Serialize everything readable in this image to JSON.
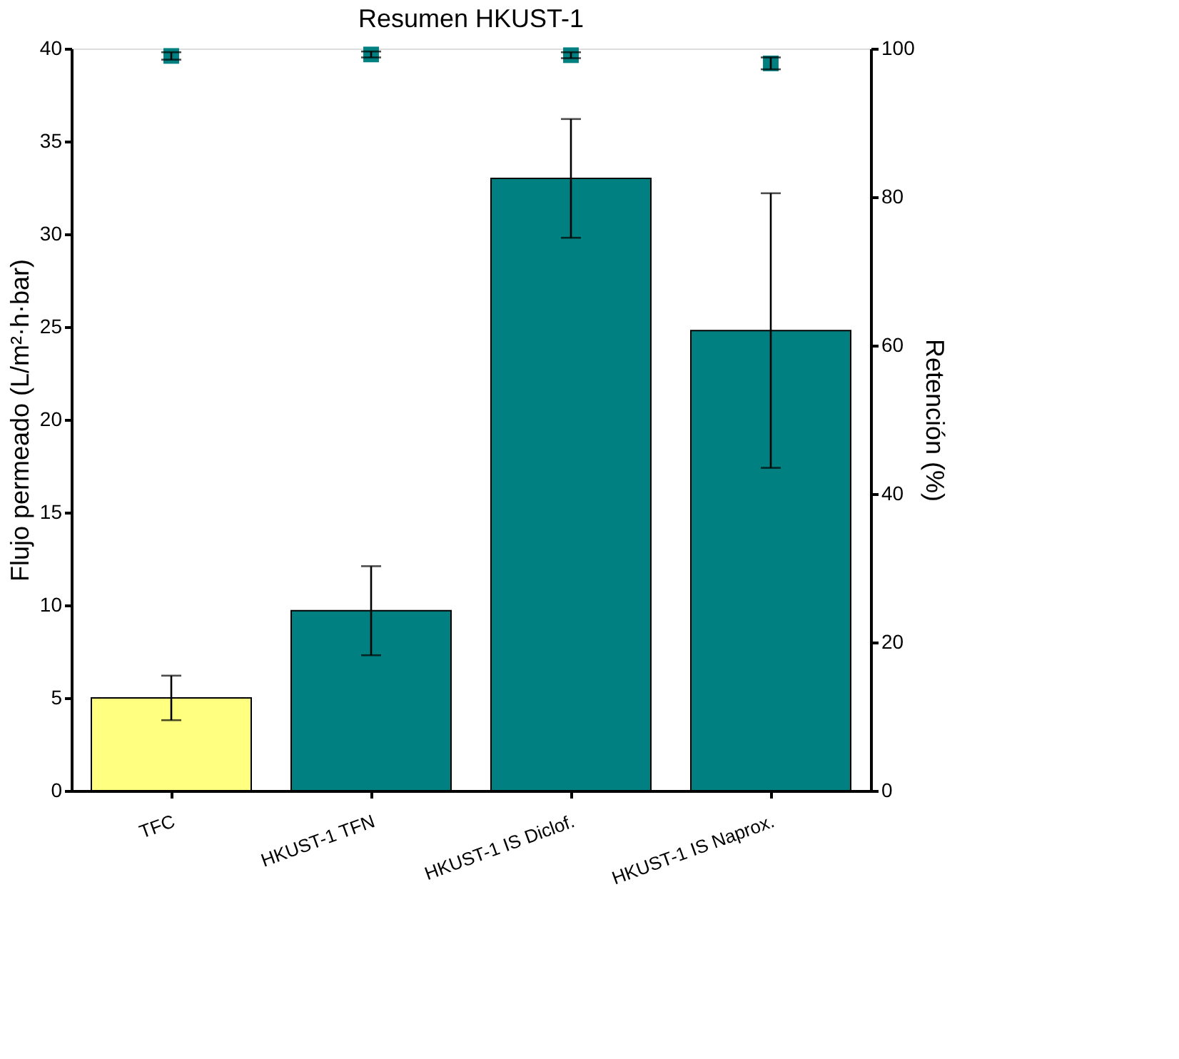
{
  "chart_data": {
    "type": "bar",
    "title": "Resumen HKUST-1",
    "ylabel": "Flujo permeado (L/m²·h·bar)",
    "y2label": "Retención (%)",
    "categories": [
      "TFC",
      "HKUST-1 TFN",
      "HKUST-1 IS Diclof.",
      "HKUST-1 IS Naprox."
    ],
    "ylim": [
      0,
      40
    ],
    "yticks": [
      0,
      5,
      10,
      15,
      20,
      25,
      30,
      35,
      40
    ],
    "y2lim": [
      0,
      100
    ],
    "y2ticks": [
      0,
      20,
      40,
      60,
      80,
      100
    ],
    "grid": false,
    "series": [
      {
        "colors": [
          "#ffff80",
          "#008080",
          "#008080",
          "#008080"
        ],
        "values": [
          5.0,
          9.7,
          33.0,
          24.8
        ],
        "errors": [
          1.2,
          2.4,
          3.2,
          7.4
        ]
      },
      {
        "type": "scatter",
        "axis": "y2",
        "marker": "square",
        "color": "#008080",
        "values": [
          99.0,
          99.2,
          99.1,
          98.0
        ],
        "errors": [
          0.5,
          0.4,
          0.4,
          0.8
        ]
      }
    ]
  }
}
